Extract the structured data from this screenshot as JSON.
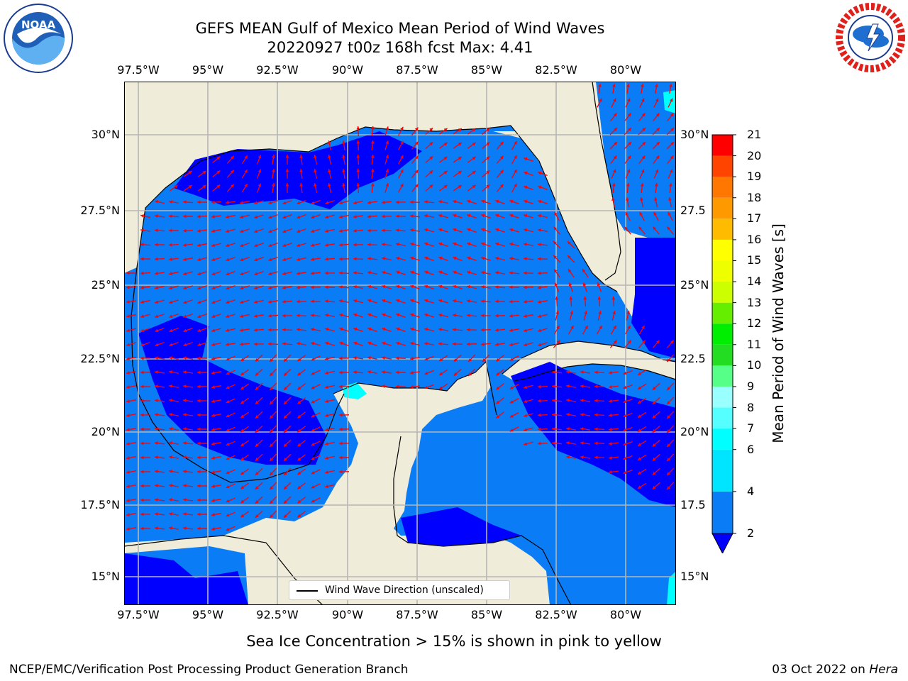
{
  "header": {
    "title_line1": "GEFS MEAN Gulf of Mexico Mean Period of Wind Waves",
    "title_line2": "20220927 t00z 168h fcst   Max: 4.41"
  },
  "logos": {
    "left": {
      "text": "NOAA",
      "ring_text": "NATIONAL OCEANIC AND ATMOSPHERIC ADMINISTRATION · U.S. DEPARTMENT OF COMMERCE"
    },
    "right": {
      "ring_text": "NATIONAL WEATHER SERVICE"
    }
  },
  "map": {
    "lon_labels": [
      "97.5°W",
      "95°W",
      "92.5°W",
      "90°W",
      "87.5°W",
      "85°W",
      "82.5°W",
      "80°W"
    ],
    "lat_labels_left": [
      "30°N",
      "27.5°N",
      "25°N",
      "22.5°N",
      "20°N",
      "17.5°N",
      "15°N"
    ],
    "lat_labels_right": [
      "30°N",
      "27.5",
      "25°N",
      "22.5",
      "20°N",
      "17.5",
      "15°N"
    ],
    "lon_range": [
      -98,
      -78.2
    ],
    "lat_range": [
      14,
      31.7
    ],
    "colors": {
      "land": "#efedd9",
      "grid": "#b5b5b5",
      "arrow": "#ff0000",
      "ocean_2_4": "#0a7cf5",
      "ocean_below_2": "#0000ff",
      "ocean_4_6": "#00ffff"
    }
  },
  "legend": {
    "label": "Wind Wave Direction (unscaled)"
  },
  "colorbar": {
    "title": "Mean Period of Wind Waves [s]",
    "ticks": [
      "21",
      "20",
      "19",
      "18",
      "17",
      "16",
      "15",
      "14",
      "13",
      "12",
      "11",
      "10",
      "9",
      "8",
      "7",
      "6",
      "4",
      "2"
    ],
    "bands": [
      {
        "from": 2,
        "to": 4,
        "color": "#0a7cf5"
      },
      {
        "from": 4,
        "to": 6,
        "color": "#00e5ff"
      },
      {
        "from": 6,
        "to": 7,
        "color": "#00ffff"
      },
      {
        "from": 7,
        "to": 8,
        "color": "#55ffff"
      },
      {
        "from": 8,
        "to": 9,
        "color": "#99ffff"
      },
      {
        "from": 9,
        "to": 10,
        "color": "#55ff88"
      },
      {
        "from": 10,
        "to": 11,
        "color": "#22dd22"
      },
      {
        "from": 11,
        "to": 12,
        "color": "#00ee00"
      },
      {
        "from": 12,
        "to": 13,
        "color": "#66ee00"
      },
      {
        "from": 13,
        "to": 14,
        "color": "#ccff00"
      },
      {
        "from": 14,
        "to": 15,
        "color": "#eeff00"
      },
      {
        "from": 15,
        "to": 16,
        "color": "#ffff00"
      },
      {
        "from": 16,
        "to": 17,
        "color": "#ffbb00"
      },
      {
        "from": 17,
        "to": 18,
        "color": "#ff9900"
      },
      {
        "from": 18,
        "to": 19,
        "color": "#ff7700"
      },
      {
        "from": 19,
        "to": 20,
        "color": "#ff4400"
      },
      {
        "from": 20,
        "to": 21,
        "color": "#ff0000"
      }
    ],
    "under_color": "#0000ff"
  },
  "note": "Sea Ice Concentration > 15% is shown in pink to yellow",
  "footer": {
    "left": "NCEP/EMC/Verification Post Processing Product Generation Branch",
    "right_date": "03 Oct 2022 on ",
    "right_machine": "Hera"
  }
}
